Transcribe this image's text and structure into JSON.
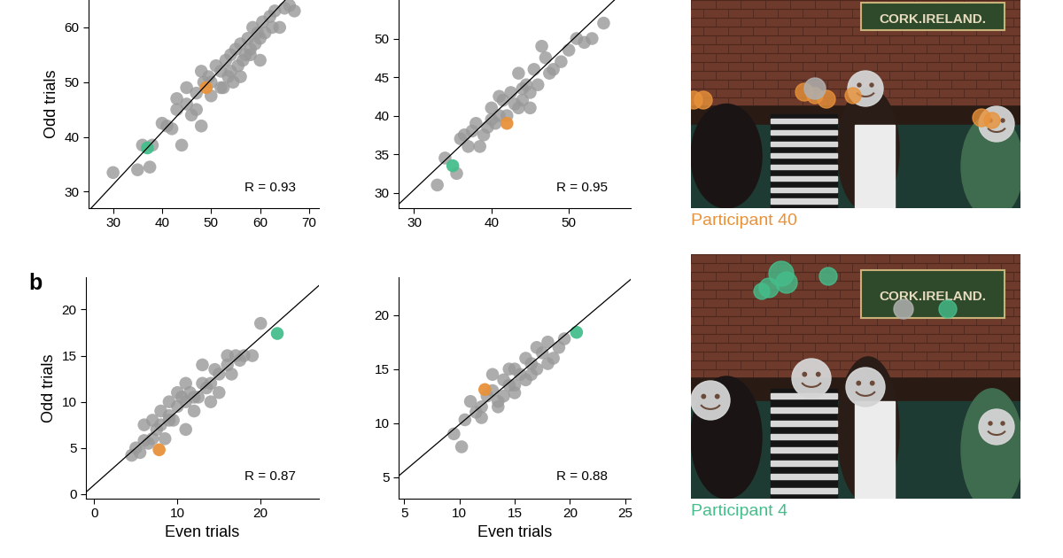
{
  "chart_data": [
    {
      "type": "scatter",
      "ylabel": "Odd trials",
      "annotation": "R = 0.93",
      "xlim": [
        25,
        72
      ],
      "ylim": [
        27,
        65
      ],
      "xticks": [
        30,
        40,
        50,
        60,
        70
      ],
      "yticks": [
        30,
        40,
        50,
        60
      ],
      "fit_line": {
        "x": [
          25,
          72
        ],
        "y": [
          26.5,
          71.6
        ]
      },
      "series": [
        {
          "color": "#999999",
          "x": [
            30,
            35,
            36,
            37.5,
            38,
            40,
            41,
            42,
            43,
            44,
            45,
            46,
            47,
            48,
            48.5,
            49.5,
            50,
            51,
            52,
            52.5,
            53,
            53.5,
            54,
            54.5,
            55,
            55.5,
            56,
            56.5,
            57,
            57.5,
            58,
            58.5,
            59,
            59.5,
            60,
            60.5,
            61,
            62,
            62.5,
            63,
            64,
            65,
            66,
            67,
            45,
            50,
            52,
            54,
            56,
            58,
            60,
            48,
            43,
            47
          ],
          "values": [
            33.5,
            34,
            38.5,
            34.5,
            38.5,
            42.5,
            42,
            41.5,
            47,
            38.5,
            49,
            44,
            48,
            42,
            50,
            51,
            47.5,
            53,
            52,
            49,
            54,
            51,
            55,
            50,
            56,
            53,
            57,
            54,
            55,
            58,
            56,
            60,
            57,
            59,
            58,
            61,
            59,
            62,
            60,
            63,
            60,
            63.5,
            64,
            63,
            46,
            50,
            49,
            52,
            51,
            55,
            54,
            52,
            45,
            45
          ]
        },
        {
          "color": "#e8923a",
          "x": [
            49
          ],
          "values": [
            49
          ]
        },
        {
          "color": "#45be8c",
          "x": [
            37
          ],
          "values": [
            38
          ]
        }
      ]
    },
    {
      "type": "scatter",
      "annotation": "R = 0.95",
      "xlim": [
        28,
        58
      ],
      "ylim": [
        28,
        55
      ],
      "xticks": [
        30,
        40,
        50
      ],
      "yticks": [
        30,
        35,
        40,
        45,
        50
      ],
      "fit_line": {
        "x": [
          28,
          58
        ],
        "y": [
          28.5,
          57
        ]
      },
      "series": [
        {
          "color": "#999999",
          "x": [
            33,
            34,
            35.5,
            36,
            37,
            37.5,
            38,
            39,
            40,
            40.5,
            41,
            41.5,
            42.5,
            43,
            43.5,
            44,
            44.5,
            45,
            45.5,
            46,
            46.5,
            47,
            48,
            49,
            50,
            51,
            52,
            53,
            54.5,
            38.5,
            39.5,
            41,
            42,
            43.5,
            44,
            45,
            36.5,
            40,
            47.5
          ],
          "values": [
            31,
            34.5,
            32.5,
            37,
            36,
            38,
            39,
            37.5,
            41,
            39,
            40,
            42,
            43,
            41.5,
            45.5,
            42,
            44,
            43,
            46,
            44,
            49,
            47.5,
            46,
            47,
            48.5,
            50,
            49.5,
            50,
            52,
            36,
            38.5,
            42.5,
            40,
            41,
            43.5,
            41,
            37.5,
            39.5,
            45.5
          ]
        },
        {
          "color": "#e8923a",
          "x": [
            42
          ],
          "values": [
            39
          ]
        },
        {
          "color": "#45be8c",
          "x": [
            35
          ],
          "values": [
            33.5
          ]
        }
      ]
    },
    {
      "type": "scatter",
      "panel_label": "b",
      "xlabel": "Even trials",
      "ylabel": "Odd trials",
      "annotation": "R = 0.87",
      "xlim": [
        -1,
        27
      ],
      "ylim": [
        -0.5,
        23.5
      ],
      "xticks": [
        0,
        10,
        20
      ],
      "yticks": [
        0,
        5,
        10,
        15,
        20
      ],
      "fit_line": {
        "x": [
          -1,
          27
        ],
        "y": [
          0.2,
          22.6
        ]
      },
      "series": [
        {
          "color": "#999999",
          "x": [
            4.5,
            5,
            5.5,
            6,
            6.5,
            7,
            7,
            7.5,
            8,
            8.5,
            9,
            9,
            9.5,
            10,
            10.5,
            11,
            11,
            11.5,
            12,
            12.5,
            13,
            13,
            13.5,
            14,
            14.5,
            15,
            15,
            16,
            16.5,
            17,
            17.5,
            18,
            19,
            20,
            6,
            8,
            10,
            12,
            14,
            16,
            9,
            11
          ],
          "values": [
            4.2,
            5,
            4.5,
            7.5,
            5.5,
            8,
            6,
            7,
            9,
            6,
            8.5,
            10,
            8,
            9.5,
            10.5,
            10,
            12,
            11,
            9,
            10.5,
            12,
            14,
            11.5,
            12,
            13.5,
            11,
            13,
            15,
            13,
            15,
            14.5,
            15,
            15,
            18.5,
            5.8,
            7.5,
            11,
            10.5,
            10,
            14,
            8,
            7
          ]
        },
        {
          "color": "#e8923a",
          "x": [
            7.8
          ],
          "values": [
            4.8
          ]
        },
        {
          "color": "#45be8c",
          "x": [
            22
          ],
          "values": [
            17.4
          ]
        }
      ]
    },
    {
      "type": "scatter",
      "xlabel": "Even trials",
      "annotation": "R = 0.88",
      "xlim": [
        4.5,
        25.5
      ],
      "ylim": [
        3,
        23.5
      ],
      "xticks": [
        5,
        10,
        15,
        20,
        25
      ],
      "yticks": [
        5,
        10,
        15,
        20
      ],
      "fit_line": {
        "x": [
          4.5,
          25.5
        ],
        "y": [
          5.1,
          23.3
        ]
      },
      "series": [
        {
          "color": "#999999",
          "x": [
            9.5,
            10.2,
            10.5,
            11,
            11.5,
            12,
            12.5,
            13,
            13.5,
            14,
            14,
            14.5,
            15,
            15,
            15.5,
            16,
            16,
            16.5,
            17,
            17,
            17.5,
            18,
            18.5,
            19,
            19.5,
            12,
            13.5,
            15,
            16.5,
            18,
            14.5,
            13
          ],
          "values": [
            9,
            7.8,
            10.3,
            12,
            11,
            11.5,
            12.5,
            13,
            12,
            14,
            12.5,
            13.5,
            15,
            13.5,
            14.5,
            16,
            14,
            15.5,
            17,
            15,
            16.5,
            17.5,
            16,
            17,
            17.8,
            10.5,
            11.5,
            12.8,
            14.5,
            15.5,
            15,
            14.5
          ]
        },
        {
          "color": "#e8923a",
          "x": [
            12.3
          ],
          "values": [
            13.1
          ]
        },
        {
          "color": "#45be8c",
          "x": [
            20.6
          ],
          "values": [
            18.4
          ]
        }
      ]
    }
  ],
  "images": [
    {
      "sign_text": "CORK.IRELAND.",
      "caption": "Participant 40",
      "caption_color": "#e8923a",
      "fixation_color": "#e8923a"
    },
    {
      "sign_text": "CORK.IRELAND.",
      "caption": "Participant 4",
      "caption_color": "#45be8c",
      "fixation_color": "#45be8c"
    }
  ]
}
